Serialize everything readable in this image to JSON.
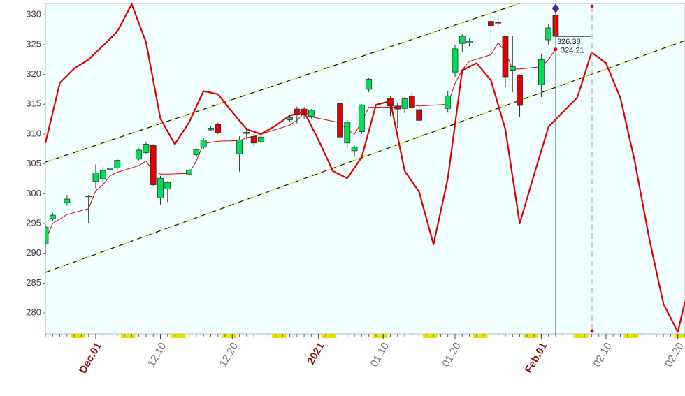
{
  "chart_data": {
    "type": "candlestick",
    "x": [
      "11.24",
      "11.25",
      "11.27",
      "11.30",
      "12.01",
      "12.02",
      "12.03",
      "12.04",
      "12.07",
      "12.08",
      "12.09",
      "12.10",
      "12.11",
      "12.14",
      "12.15",
      "12.16",
      "12.17",
      "12.18",
      "12.21",
      "12.22",
      "12.23",
      "12.24",
      "12.28",
      "12.29",
      "12.30",
      "12.31",
      "01.04",
      "01.05",
      "01.06",
      "01.07",
      "01.08",
      "01.11",
      "01.12",
      "01.13",
      "01.14",
      "01.15",
      "01.19",
      "01.20",
      "01.21",
      "01.22",
      "01.25",
      "01.26",
      "01.27",
      "01.28",
      "01.29",
      "02.01",
      "02.02",
      "02.03"
    ],
    "open": [
      291.7,
      295.8,
      298.5,
      299.5,
      302.1,
      302.5,
      304.1,
      304.3,
      305.8,
      306.9,
      308.1,
      299.3,
      300.8,
      303.3,
      306.5,
      307.8,
      310.7,
      311.6,
      306.7,
      310.1,
      309.6,
      308.7,
      312.4,
      314.2,
      314.2,
      313.0,
      315.1,
      308.5,
      307.2,
      310.4,
      317.5,
      316.0,
      314.7,
      314.3,
      316.4,
      314.1,
      314.3,
      320.4,
      325.2,
      325.3,
      328.9,
      328.8,
      326.4,
      320.7,
      319.8,
      318.3,
      325.8,
      329.9
    ],
    "high": [
      294.8,
      296.8,
      299.8,
      299.8,
      304.9,
      304.5,
      304.8,
      305.8,
      307.6,
      308.6,
      308.3,
      303.0,
      302.1,
      304.5,
      307.6,
      309.3,
      311.3,
      311.9,
      309.6,
      311.0,
      310.0,
      309.8,
      313.2,
      314.6,
      314.5,
      314.2,
      315.4,
      312.4,
      308.2,
      315.0,
      319.4,
      316.4,
      315.2,
      316.2,
      317.0,
      314.6,
      317.2,
      325.0,
      326.8,
      326.0,
      330.2,
      329.5,
      326.5,
      326.4,
      320.0,
      323.5,
      328.5,
      330.6
    ],
    "low": [
      289.7,
      295.3,
      298.0,
      295.0,
      300.9,
      301.5,
      303.6,
      303.9,
      305.6,
      306.6,
      301.2,
      298.2,
      298.6,
      302.8,
      306.1,
      307.5,
      310.5,
      310.0,
      303.7,
      309.0,
      308.0,
      308.4,
      312.0,
      311.8,
      312.5,
      312.6,
      305.0,
      307.8,
      306.2,
      310.0,
      317.0,
      313.0,
      311.0,
      313.5,
      314.0,
      311.4,
      313.6,
      319.6,
      323.8,
      324.7,
      322.0,
      328.0,
      317.9,
      317.0,
      312.9,
      316.2,
      325.0,
      326.2
    ],
    "close": [
      294.4,
      296.4,
      299.1,
      299.6,
      303.5,
      303.9,
      304.3,
      305.6,
      307.3,
      308.3,
      301.5,
      302.6,
      301.9,
      304.0,
      307.4,
      309.0,
      311.0,
      310.2,
      309.0,
      310.3,
      308.5,
      309.5,
      312.8,
      313.3,
      313.3,
      314.0,
      309.5,
      312.0,
      307.8,
      314.9,
      319.2,
      314.7,
      314.2,
      315.9,
      314.5,
      312.3,
      316.4,
      324.3,
      326.4,
      325.5,
      328.2,
      328.6,
      319.6,
      321.3,
      314.8,
      322.5,
      327.8,
      326.38
    ],
    "color_up": "#00e050",
    "color_down": "#e00000",
    "moving_average": {
      "color": "#e00000",
      "values": [
        292.1,
        295.0,
        296.5,
        297.5,
        300.5,
        301.5,
        303.0,
        303.6,
        304.7,
        305.5,
        303.8,
        303.3,
        303.3,
        303.4,
        305.5,
        308.4,
        308.6,
        308.8,
        308.9,
        309.4,
        309.6,
        310.0,
        311.5,
        312.3,
        313.5,
        312.9,
        311.9,
        310.7,
        310.0,
        312.0,
        314.5,
        314.5,
        314.5,
        314.8,
        314.9,
        314.7,
        315.0,
        318.5,
        320.8,
        322.2,
        323.3,
        325.3,
        323.8,
        320.9,
        320.9,
        321.3,
        322.5,
        324.21
      ]
    },
    "oscillator": {
      "color": "#e00000",
      "x": [
        "11.24",
        "11.26",
        "11.28",
        "11.30",
        "12.02",
        "12.04",
        "12.06",
        "12.08",
        "12.10",
        "12.12",
        "12.14",
        "12.16",
        "12.18",
        "12.20",
        "12.22",
        "12.24",
        "12.26",
        "12.28",
        "12.30",
        "01.01",
        "01.03",
        "01.05",
        "01.07",
        "01.09",
        "01.11",
        "01.13",
        "01.15",
        "01.17",
        "01.19",
        "01.21",
        "01.23",
        "01.25",
        "01.27",
        "01.29",
        "01.31",
        "02.02",
        "02.04",
        "02.06",
        "02.08",
        "02.10",
        "02.12",
        "02.14",
        "02.16",
        "02.18",
        "02.20",
        "02.21"
      ],
      "values": [
        308.5,
        318.6,
        321.0,
        322.5,
        324.8,
        327.2,
        331.8,
        325.4,
        312.6,
        308.3,
        312.0,
        317.2,
        316.7,
        313.7,
        310.8,
        310.0,
        311.4,
        313.1,
        313.7,
        309.0,
        303.8,
        302.6,
        306.1,
        314.9,
        315.5,
        303.8,
        300.3,
        291.5,
        302.6,
        320.7,
        321.9,
        319.0,
        310.8,
        295.0,
        303.2,
        311.2,
        313.7,
        316.1,
        323.7,
        321.9,
        316.1,
        305.5,
        292.6,
        281.5,
        276.8,
        281.9
      ]
    },
    "channel": [
      {
        "x": [
          "11.24",
          "01.29"
        ],
        "values": [
          305.3,
          331.9
        ]
      },
      {
        "x": [
          "11.24",
          "02.21"
        ],
        "values": [
          286.8,
          325.7
        ]
      }
    ],
    "annotations": [
      {
        "text": "326.38"
      },
      {
        "text": "324.21"
      }
    ],
    "xlim": [
      "11.24",
      "02.21"
    ],
    "xticks": [
      {
        "value": "12.01",
        "label": "Dec.01"
      },
      "12.10",
      "12.20",
      {
        "value": "01.01",
        "label": "2021"
      },
      "01.10",
      "01.20",
      {
        "value": "02.01",
        "label": "Feb.01"
      },
      "02.10",
      "02.20"
    ],
    "ylim": [
      276.5,
      331.9
    ],
    "yticks": [
      280,
      285,
      290,
      295,
      300,
      305,
      310,
      315,
      320,
      325,
      330
    ]
  }
}
